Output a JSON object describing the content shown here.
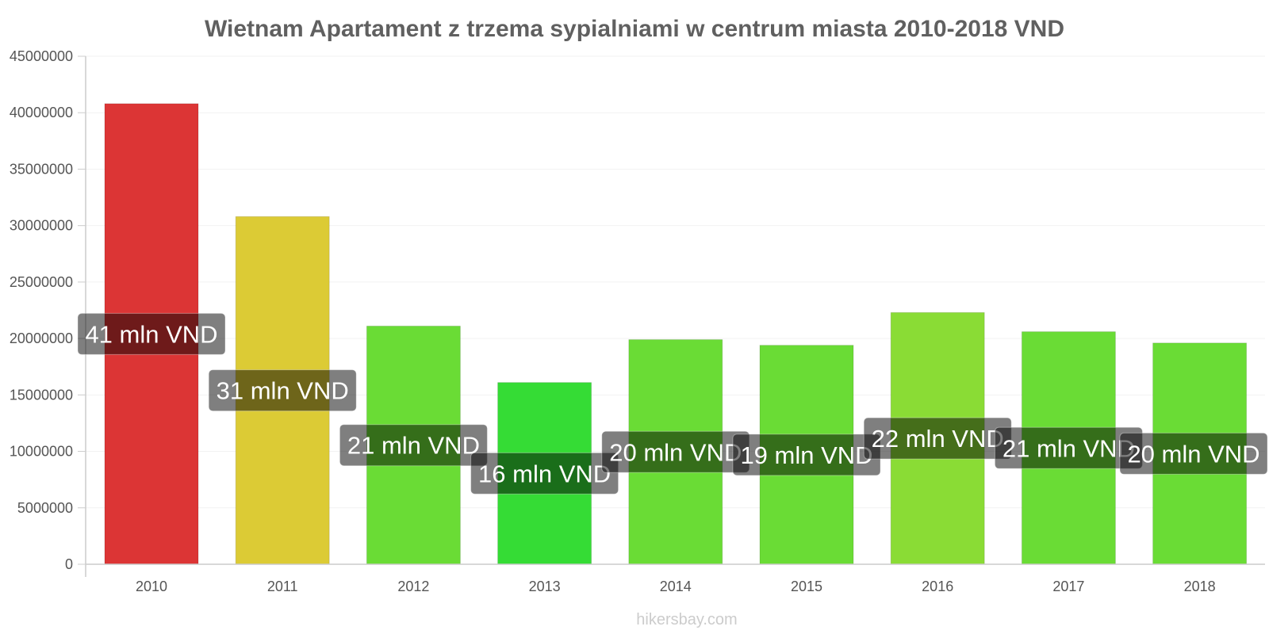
{
  "watermark": "hikersbay.com",
  "chart_data": {
    "type": "bar",
    "title": "Wietnam Apartament z trzema sypialniami w centrum miasta 2010-2018 VND",
    "xlabel": "",
    "ylabel": "",
    "categories": [
      "2010",
      "2011",
      "2012",
      "2013",
      "2014",
      "2015",
      "2016",
      "2017",
      "2018"
    ],
    "values": [
      40800000,
      30800000,
      21100000,
      16100000,
      19900000,
      19400000,
      22300000,
      20600000,
      19600000
    ],
    "data_labels": [
      "41 mln VND",
      "31 mln VND",
      "21 mln VND",
      "16 mln VND",
      "20 mln VND",
      "19 mln VND",
      "22 mln VND",
      "21 mln VND",
      "20 mln VND"
    ],
    "colors": [
      "#dc3535",
      "#dccb35",
      "#6adc35",
      "#35dc35",
      "#6adc35",
      "#6adc35",
      "#8adc35",
      "#6adc35",
      "#6adc35"
    ],
    "ylim": [
      0,
      45000000
    ],
    "yticks": [
      "0",
      "5000000",
      "10000000",
      "15000000",
      "20000000",
      "25000000",
      "30000000",
      "35000000",
      "40000000",
      "45000000"
    ],
    "grid": true,
    "legend": "none"
  }
}
